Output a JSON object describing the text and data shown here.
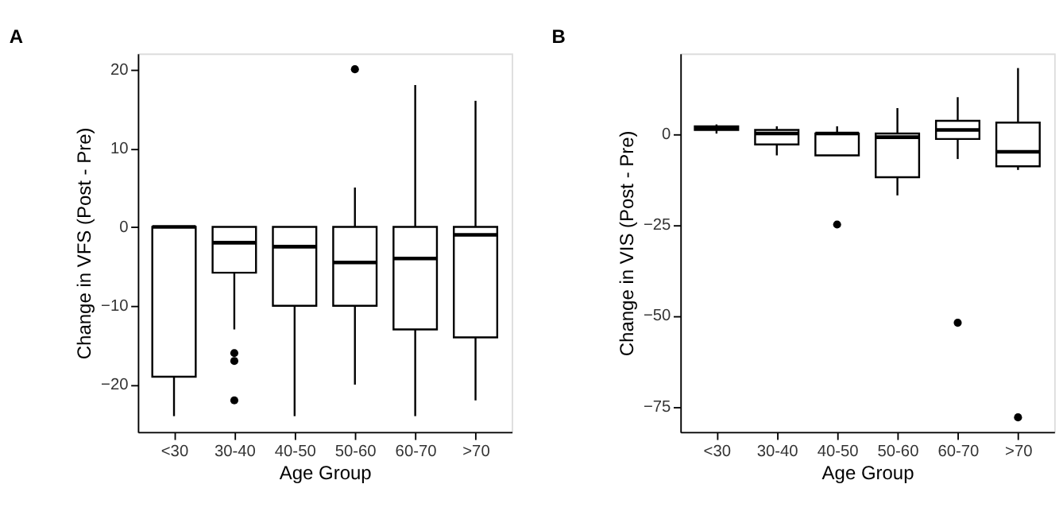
{
  "chart_data": [
    {
      "type": "box",
      "title": "A",
      "xlabel": "Age Group",
      "ylabel": "Change in VFS (Post - Pre)",
      "categories": [
        "<30",
        "30-40",
        "40-50",
        "50-60",
        "60-70",
        ">70"
      ],
      "ylim": [
        -26,
        22
      ],
      "yticks": [
        -20,
        -10,
        0,
        10,
        20
      ],
      "grid": false,
      "boxes": [
        {
          "low": -24,
          "q1": -19,
          "median": 0,
          "q3": 0,
          "high": 0
        },
        {
          "low": -13,
          "q1": -5.8,
          "median": -2,
          "q3": 0,
          "high": 0,
          "outliers": [
            -16,
            -17,
            -22
          ]
        },
        {
          "low": -24,
          "q1": -10,
          "median": -2.5,
          "q3": 0,
          "high": 0
        },
        {
          "low": -20,
          "q1": -10,
          "median": -4.5,
          "q3": 0,
          "high": 5,
          "outliers": [
            20
          ]
        },
        {
          "low": -24,
          "q1": -13,
          "median": -4,
          "q3": 0,
          "high": 18
        },
        {
          "low": -22,
          "q1": -14,
          "median": -1,
          "q3": 0,
          "high": 16
        }
      ]
    },
    {
      "type": "box",
      "title": "B",
      "xlabel": "Age Group",
      "ylabel": "Change in VIS (Post - Pre)",
      "categories": [
        "<30",
        "30-40",
        "40-50",
        "50-60",
        "60-70",
        ">70"
      ],
      "ylim": [
        -82,
        22
      ],
      "yticks": [
        -75,
        -50,
        -25,
        0
      ],
      "grid": false,
      "boxes": [
        {
          "low": 0,
          "q1": 1,
          "median": 1.5,
          "q3": 2,
          "high": 2.5
        },
        {
          "low": -6,
          "q1": -3,
          "median": 0,
          "q3": 1,
          "high": 2
        },
        {
          "low": -6,
          "q1": -6,
          "median": 0,
          "q3": 0,
          "high": 2,
          "outliers": [
            -25
          ]
        },
        {
          "low": -17,
          "q1": -12,
          "median": -1,
          "q3": 0,
          "high": 7
        },
        {
          "low": -7,
          "q1": -1.5,
          "median": 1,
          "q3": 3.5,
          "high": 10,
          "outliers": [
            -52
          ]
        },
        {
          "low": -10,
          "q1": -9,
          "median": -5,
          "q3": 3,
          "high": 18,
          "outliers": [
            -78
          ]
        }
      ]
    }
  ]
}
